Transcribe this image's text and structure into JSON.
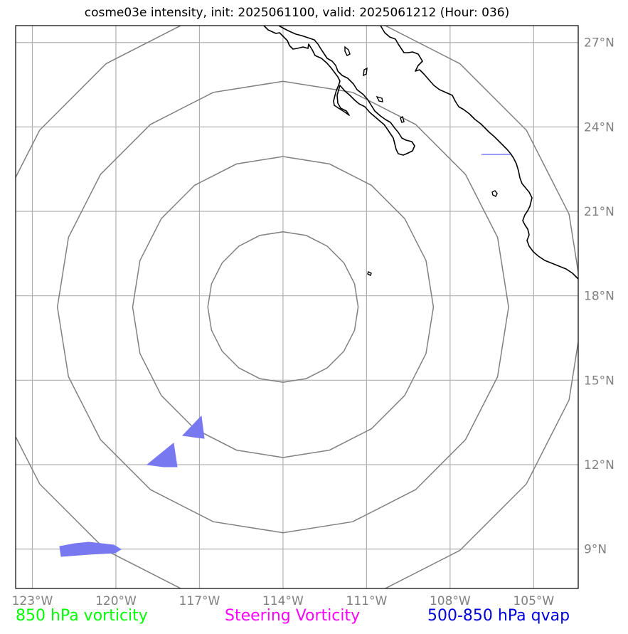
{
  "title": "cosme03e intensity, init: 2025061100, valid: 2025061212 (Hour: 036)",
  "map": {
    "extent": {
      "lon_min": -123.6,
      "lon_max": -103.4,
      "lat_min": 7.6,
      "lat_max": 27.6
    },
    "lon_gridlines": [
      -123,
      -120,
      -117,
      -114,
      -111,
      -108,
      -105
    ],
    "lat_gridlines": [
      9,
      12,
      15,
      18,
      21,
      24,
      27
    ],
    "lon_labels": [
      "123°W",
      "120°W",
      "117°W",
      "114°W",
      "111°W",
      "108°W",
      "105°W"
    ],
    "lat_labels": [
      "9°N",
      "12°N",
      "15°N",
      "18°N",
      "21°N",
      "24°N",
      "27°N"
    ],
    "range_rings": {
      "center": {
        "lon": -114,
        "lat": 17.6
      },
      "radii_deg": [
        2.7,
        5.4,
        8.1,
        10.8
      ]
    },
    "colors": {
      "gridline": "#b0b0b0",
      "range_ring": "#808080",
      "coastline": "#000000",
      "qvap_fill": "#7878f0",
      "frame": "#000000"
    }
  },
  "legend": {
    "vorticity_850": {
      "label": "850 hPa vorticity",
      "color": "#00ff00"
    },
    "steering_vorticity": {
      "label": "Steering Vorticity",
      "color": "#ff00ff"
    },
    "qvap_500_850": {
      "label": "500-850 hPa qvap",
      "color": "#0000dd"
    }
  }
}
